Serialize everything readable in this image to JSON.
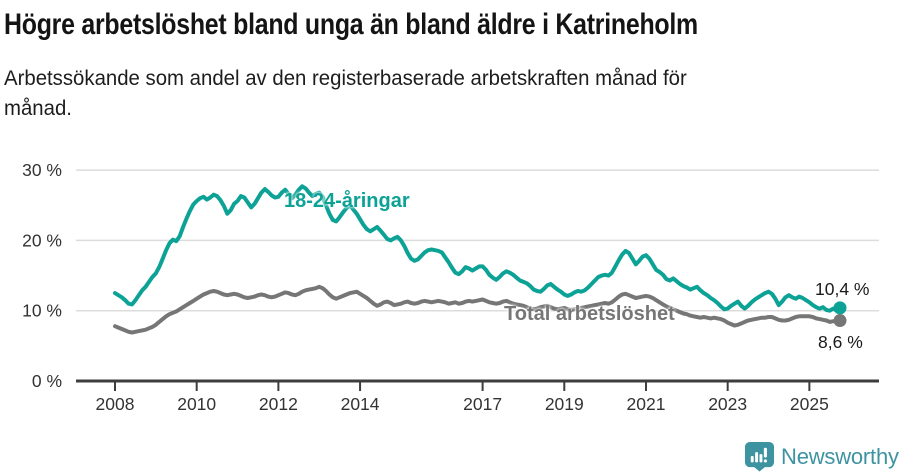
{
  "header": {
    "title": "Högre arbetslöshet bland unga än bland äldre i Katrineholm",
    "subtitle_lines": [
      "Arbetssökande som andel av den registerbaserade arbetskraften månad för",
      "månad."
    ]
  },
  "chart_data": {
    "type": "line",
    "title": "Högre arbetslöshet bland unga än bland äldre i Katrineholm",
    "xlabel": "",
    "ylabel": "Arbetssökande som andel av den registerbaserade arbetskraften",
    "unit": "%",
    "frequency": "monthly",
    "x_start": "2008-01",
    "x_end": "2025-10",
    "ylim": [
      0,
      30
    ],
    "grid": true,
    "legend_position": "inline-annotations",
    "axis_color": "#3d3d3d",
    "grid_color": "#dcdcdc",
    "tick_text_color": "#333333",
    "y_ticks": [
      {
        "v": 0,
        "label": "0 %"
      },
      {
        "v": 10,
        "label": "10 %"
      },
      {
        "v": 20,
        "label": "20 %"
      },
      {
        "v": 30,
        "label": "30 %"
      }
    ],
    "x_ticks": [
      {
        "year": 2008,
        "label": "2008"
      },
      {
        "year": 2010,
        "label": "2010"
      },
      {
        "year": 2012,
        "label": "2012"
      },
      {
        "year": 2014,
        "label": "2014"
      },
      {
        "year": 2017,
        "label": "2017"
      },
      {
        "year": 2019,
        "label": "2019"
      },
      {
        "year": 2021,
        "label": "2021"
      },
      {
        "year": 2023,
        "label": "2023"
      },
      {
        "year": 2025,
        "label": "2025"
      }
    ],
    "series": [
      {
        "name": "18-24-åringar",
        "color": "#0ca296",
        "end_value": 10.4,
        "end_label": "10,4 %",
        "values": [
          12.5,
          12.2,
          11.9,
          11.5,
          11.0,
          10.9,
          11.5,
          12.2,
          12.9,
          13.4,
          14.1,
          14.8,
          15.3,
          16.2,
          17.4,
          18.6,
          19.6,
          20.1,
          19.9,
          20.6,
          21.9,
          23.1,
          24.2,
          25.1,
          25.6,
          26.0,
          26.2,
          25.8,
          26.1,
          26.5,
          26.3,
          25.7,
          24.9,
          23.8,
          24.3,
          25.2,
          25.6,
          26.3,
          26.1,
          25.4,
          24.7,
          25.2,
          26.0,
          26.8,
          27.3,
          26.9,
          26.4,
          26.1,
          26.2,
          26.8,
          27.2,
          26.6,
          26.0,
          26.5,
          27.2,
          27.7,
          27.4,
          26.8,
          26.3,
          26.6,
          26.8,
          26.2,
          25.0,
          23.8,
          22.9,
          22.7,
          23.3,
          24.0,
          24.6,
          25.0,
          24.4,
          23.8,
          23.0,
          22.2,
          21.6,
          21.3,
          21.6,
          21.9,
          21.4,
          20.8,
          20.2,
          20.0,
          20.3,
          20.5,
          20.0,
          19.2,
          18.2,
          17.4,
          17.1,
          17.3,
          17.8,
          18.3,
          18.6,
          18.7,
          18.6,
          18.5,
          18.3,
          17.6,
          16.9,
          16.1,
          15.4,
          15.2,
          15.6,
          16.2,
          16.0,
          15.7,
          16.0,
          16.3,
          16.3,
          15.8,
          15.1,
          14.7,
          14.4,
          14.8,
          15.3,
          15.6,
          15.4,
          15.1,
          14.7,
          14.3,
          14.1,
          13.9,
          13.5,
          13.0,
          12.8,
          12.7,
          13.1,
          13.6,
          13.8,
          13.4,
          13.0,
          12.7,
          12.3,
          12.1,
          12.3,
          12.6,
          12.8,
          12.7,
          12.9,
          13.3,
          13.8,
          14.3,
          14.8,
          15.0,
          15.1,
          15.0,
          15.4,
          16.3,
          17.2,
          18.0,
          18.5,
          18.2,
          17.4,
          16.6,
          17.1,
          17.7,
          17.9,
          17.4,
          16.6,
          15.8,
          15.5,
          15.1,
          14.5,
          14.3,
          14.6,
          14.2,
          13.8,
          13.5,
          13.3,
          13.0,
          13.2,
          13.4,
          12.9,
          12.5,
          12.2,
          11.8,
          11.5,
          11.1,
          10.6,
          10.2,
          10.3,
          10.7,
          11.0,
          11.3,
          10.7,
          10.3,
          10.7,
          11.2,
          11.6,
          11.9,
          12.2,
          12.5,
          12.7,
          12.4,
          11.7,
          10.8,
          11.3,
          11.9,
          12.2,
          11.9,
          11.7,
          12.0,
          11.8,
          11.5,
          11.2,
          10.8,
          10.5,
          10.3,
          10.5,
          10.1,
          10.0,
          10.3,
          10.0,
          10.4
        ]
      },
      {
        "name": "Total arbetslöshet",
        "color": "#767676",
        "end_value": 8.6,
        "end_label": "8,6 %",
        "values": [
          7.8,
          7.6,
          7.4,
          7.2,
          7.0,
          6.9,
          7.0,
          7.1,
          7.2,
          7.3,
          7.5,
          7.7,
          8.0,
          8.4,
          8.8,
          9.2,
          9.5,
          9.7,
          9.9,
          10.2,
          10.5,
          10.8,
          11.1,
          11.4,
          11.7,
          12.0,
          12.3,
          12.5,
          12.7,
          12.8,
          12.7,
          12.5,
          12.3,
          12.2,
          12.3,
          12.4,
          12.3,
          12.1,
          11.9,
          11.8,
          11.9,
          12.0,
          12.2,
          12.3,
          12.2,
          12.0,
          11.9,
          12.0,
          12.2,
          12.4,
          12.6,
          12.5,
          12.3,
          12.2,
          12.4,
          12.7,
          12.9,
          13.0,
          13.1,
          13.2,
          13.4,
          13.2,
          12.8,
          12.3,
          11.9,
          11.7,
          11.9,
          12.1,
          12.3,
          12.5,
          12.6,
          12.7,
          12.4,
          12.1,
          11.8,
          11.4,
          11.0,
          10.7,
          10.9,
          11.2,
          11.3,
          11.1,
          10.8,
          10.9,
          11.0,
          11.2,
          11.3,
          11.1,
          11.0,
          11.1,
          11.3,
          11.4,
          11.3,
          11.2,
          11.3,
          11.4,
          11.3,
          11.2,
          11.0,
          11.1,
          11.2,
          11.0,
          11.1,
          11.3,
          11.4,
          11.3,
          11.4,
          11.5,
          11.6,
          11.4,
          11.2,
          11.1,
          11.0,
          11.1,
          11.3,
          11.4,
          11.2,
          11.0,
          10.9,
          10.8,
          10.7,
          10.5,
          10.3,
          10.2,
          10.3,
          10.5,
          10.6,
          10.7,
          10.5,
          10.3,
          10.2,
          10.3,
          10.4,
          10.2,
          10.1,
          10.2,
          10.3,
          10.4,
          10.5,
          10.6,
          10.7,
          10.8,
          10.9,
          11.0,
          11.1,
          11.0,
          11.2,
          11.6,
          12.0,
          12.3,
          12.4,
          12.2,
          12.0,
          11.8,
          11.9,
          12.0,
          12.1,
          12.0,
          11.8,
          11.5,
          11.2,
          10.9,
          10.6,
          10.4,
          10.2,
          10.0,
          9.8,
          9.6,
          9.5,
          9.3,
          9.2,
          9.1,
          9.0,
          9.1,
          9.0,
          8.9,
          9.0,
          8.9,
          8.8,
          8.6,
          8.3,
          8.1,
          7.9,
          8.0,
          8.2,
          8.4,
          8.6,
          8.7,
          8.8,
          8.9,
          9.0,
          9.0,
          9.1,
          9.1,
          8.9,
          8.7,
          8.6,
          8.6,
          8.7,
          8.9,
          9.1,
          9.2,
          9.2,
          9.2,
          9.2,
          9.1,
          8.9,
          8.8,
          8.7,
          8.6,
          8.4,
          8.5,
          8.5,
          8.6
        ]
      }
    ]
  },
  "footer": {
    "brand": "Newsworthy",
    "brand_color": "#3e93a1",
    "logo_icon": "bar-chart-speech-bubble-icon"
  }
}
